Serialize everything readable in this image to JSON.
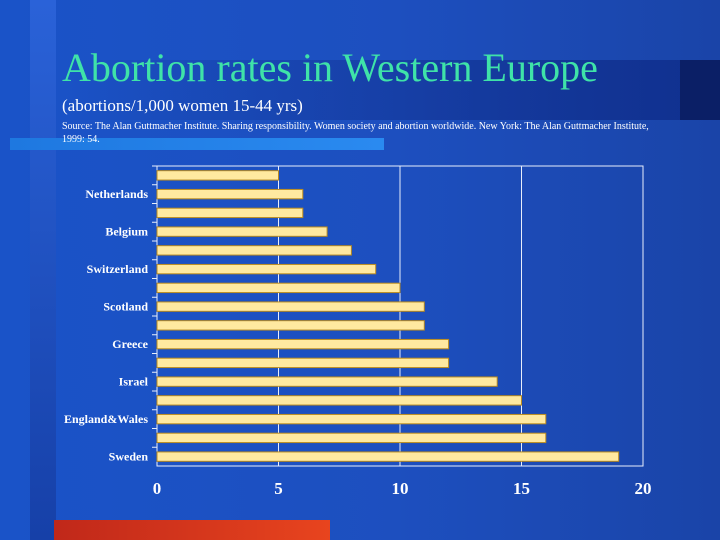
{
  "title": "Abortion rates in Western Europe",
  "subtitle": "(abortions/1,000 women 15-44 yrs)",
  "source": "Source: The Alan Guttmacher Institute. Sharing responsibility. Women society and abortion worldwide. New York: The Alan Guttmacher Institute, 1999: 54.",
  "colors": {
    "title": "#3fe3a8",
    "bar_fill": "#ffe9a0",
    "bar_stroke": "#b88a20",
    "grid": "#e8eefc",
    "background": "#1d4fbf",
    "accent_red": "#e03c1e"
  },
  "chart_data": {
    "type": "bar",
    "orientation": "horizontal",
    "title": "Abortion rates in Western Europe",
    "xlabel": "",
    "ylabel": "",
    "xlim": [
      0,
      20
    ],
    "x_ticks": [
      "0",
      "5",
      "10",
      "15",
      "20"
    ],
    "grid": true,
    "legend": "none",
    "categories": [
      "",
      "Netherlands",
      "",
      "Belgium",
      "",
      "Switzerland",
      "",
      "Scotland",
      "",
      "Greece",
      "",
      "Israel",
      "",
      "England&Wales",
      "",
      "Sweden"
    ],
    "values": [
      5,
      6,
      6,
      7,
      8,
      9,
      10,
      11,
      11,
      12,
      12,
      14,
      15,
      16,
      16,
      19
    ]
  }
}
